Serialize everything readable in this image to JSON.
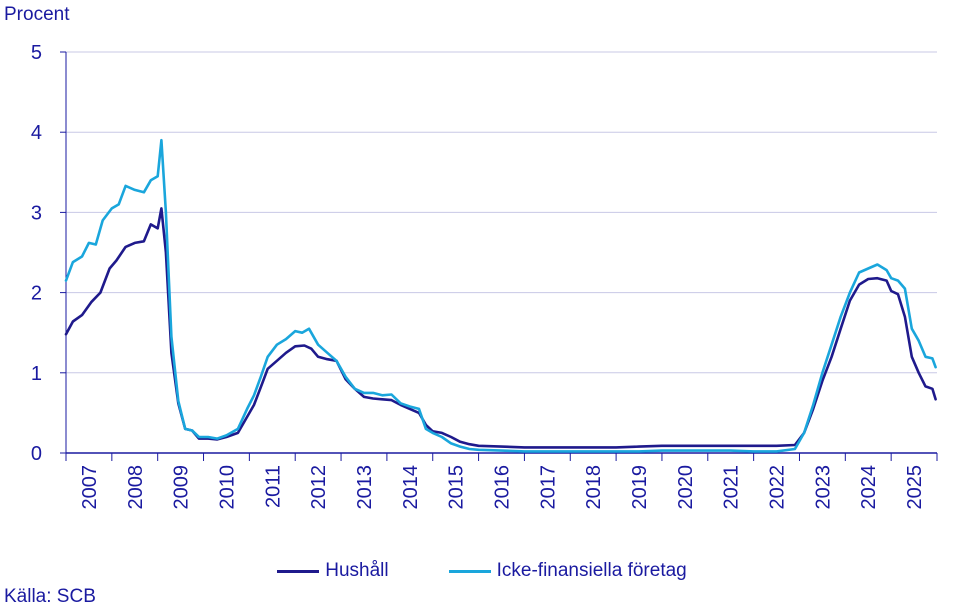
{
  "chart_data": {
    "type": "line",
    "ylabel": "Procent",
    "source": "Källa: SCB",
    "ylim": [
      0,
      5
    ],
    "yticks": [
      "0",
      "1",
      "2",
      "3",
      "4",
      "5"
    ],
    "xlim": [
      2006.0,
      2025.0
    ],
    "xticks": [
      "2007",
      "2008",
      "2009",
      "2010",
      "2011",
      "2012",
      "2013",
      "2014",
      "2015",
      "2016",
      "2017",
      "2018",
      "2019",
      "2020",
      "2021",
      "2022",
      "2023",
      "2024",
      "2025"
    ],
    "grid": true,
    "legend_position": "bottom",
    "series": [
      {
        "name": "Hushåll",
        "color": "#1f1a8c",
        "points": [
          [
            2006.0,
            1.48
          ],
          [
            2006.15,
            1.64
          ],
          [
            2006.35,
            1.72
          ],
          [
            2006.55,
            1.88
          ],
          [
            2006.75,
            2.0
          ],
          [
            2006.95,
            2.3
          ],
          [
            2007.1,
            2.4
          ],
          [
            2007.3,
            2.57
          ],
          [
            2007.5,
            2.62
          ],
          [
            2007.7,
            2.64
          ],
          [
            2007.85,
            2.85
          ],
          [
            2008.0,
            2.8
          ],
          [
            2008.08,
            3.05
          ],
          [
            2008.18,
            2.5
          ],
          [
            2008.3,
            1.25
          ],
          [
            2008.45,
            0.62
          ],
          [
            2008.6,
            0.3
          ],
          [
            2008.75,
            0.28
          ],
          [
            2008.9,
            0.18
          ],
          [
            2009.1,
            0.18
          ],
          [
            2009.3,
            0.17
          ],
          [
            2009.5,
            0.2
          ],
          [
            2009.75,
            0.25
          ],
          [
            2009.95,
            0.45
          ],
          [
            2010.1,
            0.6
          ],
          [
            2010.25,
            0.82
          ],
          [
            2010.4,
            1.05
          ],
          [
            2010.6,
            1.15
          ],
          [
            2010.8,
            1.25
          ],
          [
            2011.0,
            1.33
          ],
          [
            2011.2,
            1.34
          ],
          [
            2011.35,
            1.3
          ],
          [
            2011.5,
            1.2
          ],
          [
            2011.7,
            1.17
          ],
          [
            2011.9,
            1.15
          ],
          [
            2012.1,
            0.92
          ],
          [
            2012.3,
            0.8
          ],
          [
            2012.5,
            0.7
          ],
          [
            2012.7,
            0.68
          ],
          [
            2012.9,
            0.67
          ],
          [
            2013.1,
            0.66
          ],
          [
            2013.3,
            0.6
          ],
          [
            2013.5,
            0.55
          ],
          [
            2013.7,
            0.5
          ],
          [
            2013.85,
            0.35
          ],
          [
            2014.0,
            0.27
          ],
          [
            2014.2,
            0.25
          ],
          [
            2014.4,
            0.2
          ],
          [
            2014.6,
            0.14
          ],
          [
            2014.8,
            0.11
          ],
          [
            2015.0,
            0.09
          ],
          [
            2015.5,
            0.08
          ],
          [
            2016.0,
            0.07
          ],
          [
            2016.5,
            0.07
          ],
          [
            2017.0,
            0.07
          ],
          [
            2017.5,
            0.07
          ],
          [
            2018.0,
            0.07
          ],
          [
            2018.5,
            0.08
          ],
          [
            2019.0,
            0.09
          ],
          [
            2019.5,
            0.09
          ],
          [
            2020.0,
            0.09
          ],
          [
            2020.5,
            0.09
          ],
          [
            2021.0,
            0.09
          ],
          [
            2021.5,
            0.09
          ],
          [
            2021.9,
            0.1
          ],
          [
            2022.1,
            0.25
          ],
          [
            2022.3,
            0.55
          ],
          [
            2022.5,
            0.9
          ],
          [
            2022.7,
            1.2
          ],
          [
            2022.9,
            1.55
          ],
          [
            2023.1,
            1.9
          ],
          [
            2023.3,
            2.1
          ],
          [
            2023.5,
            2.17
          ],
          [
            2023.7,
            2.18
          ],
          [
            2023.9,
            2.15
          ],
          [
            2024.0,
            2.02
          ],
          [
            2024.15,
            1.98
          ],
          [
            2024.3,
            1.7
          ],
          [
            2024.45,
            1.2
          ],
          [
            2024.6,
            1.0
          ],
          [
            2024.75,
            0.83
          ],
          [
            2024.9,
            0.8
          ],
          [
            2024.97,
            0.67
          ]
        ]
      },
      {
        "name": "Icke-finansiella företag",
        "color": "#1aa6dc",
        "points": [
          [
            2006.0,
            2.15
          ],
          [
            2006.15,
            2.38
          ],
          [
            2006.35,
            2.45
          ],
          [
            2006.5,
            2.62
          ],
          [
            2006.65,
            2.6
          ],
          [
            2006.8,
            2.9
          ],
          [
            2007.0,
            3.05
          ],
          [
            2007.15,
            3.1
          ],
          [
            2007.3,
            3.33
          ],
          [
            2007.5,
            3.28
          ],
          [
            2007.7,
            3.25
          ],
          [
            2007.85,
            3.4
          ],
          [
            2008.0,
            3.45
          ],
          [
            2008.08,
            3.9
          ],
          [
            2008.18,
            3.0
          ],
          [
            2008.3,
            1.45
          ],
          [
            2008.45,
            0.65
          ],
          [
            2008.6,
            0.3
          ],
          [
            2008.75,
            0.28
          ],
          [
            2008.9,
            0.2
          ],
          [
            2009.1,
            0.2
          ],
          [
            2009.3,
            0.18
          ],
          [
            2009.5,
            0.22
          ],
          [
            2009.75,
            0.3
          ],
          [
            2009.95,
            0.55
          ],
          [
            2010.1,
            0.72
          ],
          [
            2010.25,
            0.95
          ],
          [
            2010.4,
            1.2
          ],
          [
            2010.6,
            1.35
          ],
          [
            2010.8,
            1.42
          ],
          [
            2011.0,
            1.52
          ],
          [
            2011.15,
            1.5
          ],
          [
            2011.3,
            1.55
          ],
          [
            2011.5,
            1.35
          ],
          [
            2011.7,
            1.25
          ],
          [
            2011.9,
            1.15
          ],
          [
            2012.1,
            0.95
          ],
          [
            2012.3,
            0.8
          ],
          [
            2012.5,
            0.75
          ],
          [
            2012.7,
            0.75
          ],
          [
            2012.9,
            0.72
          ],
          [
            2013.1,
            0.73
          ],
          [
            2013.3,
            0.62
          ],
          [
            2013.5,
            0.58
          ],
          [
            2013.7,
            0.55
          ],
          [
            2013.85,
            0.3
          ],
          [
            2014.0,
            0.25
          ],
          [
            2014.2,
            0.2
          ],
          [
            2014.4,
            0.12
          ],
          [
            2014.6,
            0.08
          ],
          [
            2014.8,
            0.05
          ],
          [
            2015.0,
            0.04
          ],
          [
            2015.5,
            0.03
          ],
          [
            2016.0,
            0.02
          ],
          [
            2016.5,
            0.02
          ],
          [
            2017.0,
            0.02
          ],
          [
            2017.5,
            0.02
          ],
          [
            2018.0,
            0.02
          ],
          [
            2018.5,
            0.02
          ],
          [
            2019.0,
            0.03
          ],
          [
            2019.5,
            0.03
          ],
          [
            2020.0,
            0.03
          ],
          [
            2020.5,
            0.03
          ],
          [
            2021.0,
            0.02
          ],
          [
            2021.5,
            0.02
          ],
          [
            2021.9,
            0.05
          ],
          [
            2022.1,
            0.25
          ],
          [
            2022.3,
            0.6
          ],
          [
            2022.5,
            1.0
          ],
          [
            2022.7,
            1.35
          ],
          [
            2022.9,
            1.7
          ],
          [
            2023.1,
            2.0
          ],
          [
            2023.3,
            2.25
          ],
          [
            2023.5,
            2.3
          ],
          [
            2023.7,
            2.35
          ],
          [
            2023.9,
            2.28
          ],
          [
            2024.0,
            2.18
          ],
          [
            2024.15,
            2.15
          ],
          [
            2024.3,
            2.05
          ],
          [
            2024.45,
            1.55
          ],
          [
            2024.6,
            1.4
          ],
          [
            2024.75,
            1.2
          ],
          [
            2024.9,
            1.18
          ],
          [
            2024.97,
            1.07
          ]
        ]
      }
    ]
  }
}
